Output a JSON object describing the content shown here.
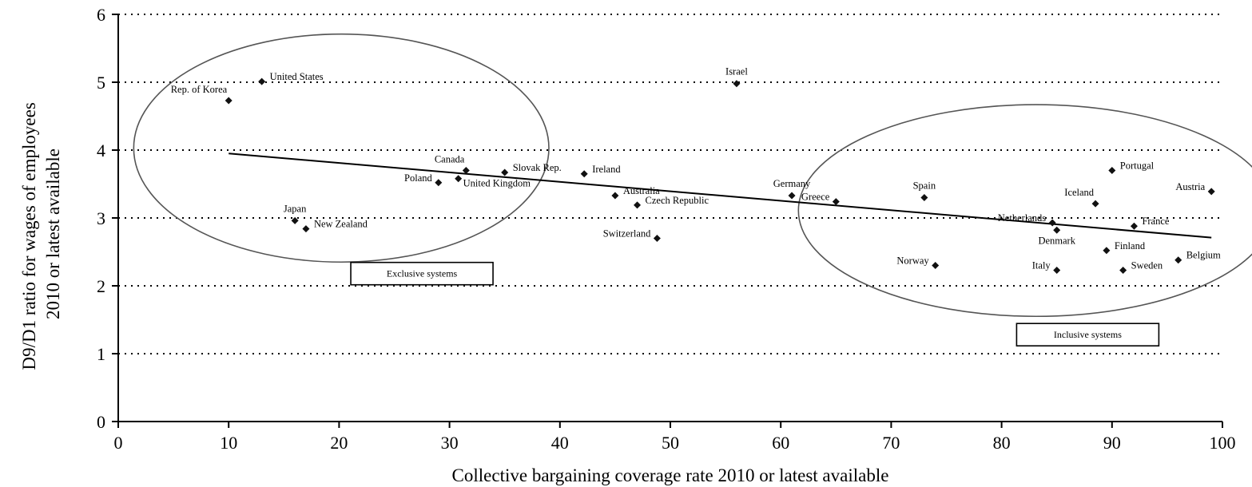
{
  "chart_data": {
    "type": "scatter",
    "xlabel": "Collective bargaining coverage rate 2010 or latest available",
    "ylabel": [
      "D9/D1 ratio for wages of employees",
      "2010 or latest available"
    ],
    "xlim": [
      0,
      100
    ],
    "ylim": [
      0,
      6
    ],
    "xticks": [
      0,
      10,
      20,
      30,
      40,
      50,
      60,
      70,
      80,
      90,
      100
    ],
    "yticks": [
      0,
      1,
      2,
      3,
      4,
      5,
      6
    ],
    "grid": "horizontal-dotted",
    "points": [
      {
        "label": "United States",
        "x": 13,
        "y": 5.01,
        "label_pos": "right"
      },
      {
        "label": "Rep. of Korea",
        "x": 10,
        "y": 4.73,
        "label_pos": "above-left"
      },
      {
        "label": "Israel",
        "x": 56,
        "y": 4.98,
        "label_pos": "above"
      },
      {
        "label": "Canada",
        "x": 31.5,
        "y": 3.7,
        "label_pos": "above-left"
      },
      {
        "label": "Slovak Rep.",
        "x": 35,
        "y": 3.67,
        "label_pos": "right"
      },
      {
        "label": "Ireland",
        "x": 42.2,
        "y": 3.65,
        "label_pos": "right"
      },
      {
        "label": "Poland",
        "x": 29,
        "y": 3.52,
        "label_pos": "left"
      },
      {
        "label": "United Kingdom",
        "x": 30.8,
        "y": 3.58,
        "label_pos": "below-right"
      },
      {
        "label": "Australia",
        "x": 45,
        "y": 3.33,
        "label_pos": "right"
      },
      {
        "label": "Czech Republic",
        "x": 47,
        "y": 3.19,
        "label_pos": "right"
      },
      {
        "label": "Japan",
        "x": 16,
        "y": 2.96,
        "label_pos": "above"
      },
      {
        "label": "New Zealand",
        "x": 17,
        "y": 2.84,
        "label_pos": "right"
      },
      {
        "label": "Switzerland",
        "x": 48.8,
        "y": 2.7,
        "label_pos": "left"
      },
      {
        "label": "Germany",
        "x": 61,
        "y": 3.33,
        "label_pos": "above"
      },
      {
        "label": "Greece",
        "x": 65,
        "y": 3.24,
        "label_pos": "left"
      },
      {
        "label": "Spain",
        "x": 73,
        "y": 3.3,
        "label_pos": "above"
      },
      {
        "label": "Iceland",
        "x": 88.5,
        "y": 3.21,
        "label_pos": "above-left"
      },
      {
        "label": "Portugal",
        "x": 90,
        "y": 3.7,
        "label_pos": "right"
      },
      {
        "label": "Austria",
        "x": 99,
        "y": 3.39,
        "label_pos": "left"
      },
      {
        "label": "Netherlands",
        "x": 84.6,
        "y": 2.93,
        "label_pos": "left"
      },
      {
        "label": "Denmark",
        "x": 85,
        "y": 2.82,
        "label_pos": "below"
      },
      {
        "label": "France",
        "x": 92,
        "y": 2.88,
        "label_pos": "right"
      },
      {
        "label": "Finland",
        "x": 89.5,
        "y": 2.52,
        "label_pos": "right"
      },
      {
        "label": "Belgium",
        "x": 96,
        "y": 2.38,
        "label_pos": "right"
      },
      {
        "label": "Norway",
        "x": 74,
        "y": 2.3,
        "label_pos": "left"
      },
      {
        "label": "Italy",
        "x": 85,
        "y": 2.23,
        "label_pos": "left"
      },
      {
        "label": "Sweden",
        "x": 91,
        "y": 2.23,
        "label_pos": "right"
      }
    ],
    "trendline": {
      "x": [
        10,
        99
      ],
      "y": [
        3.95,
        2.71
      ]
    },
    "groups": [
      {
        "label": "Exclusive systems",
        "center": [
          20.2,
          4.03
        ],
        "radius": [
          18.8,
          1.68
        ],
        "label_at": [
          27.5,
          2.18
        ]
      },
      {
        "label": "Inclusive systems",
        "center": [
          83.1,
          3.11
        ],
        "radius": [
          21.5,
          1.56
        ],
        "label_at": [
          87.8,
          1.28
        ]
      }
    ]
  }
}
